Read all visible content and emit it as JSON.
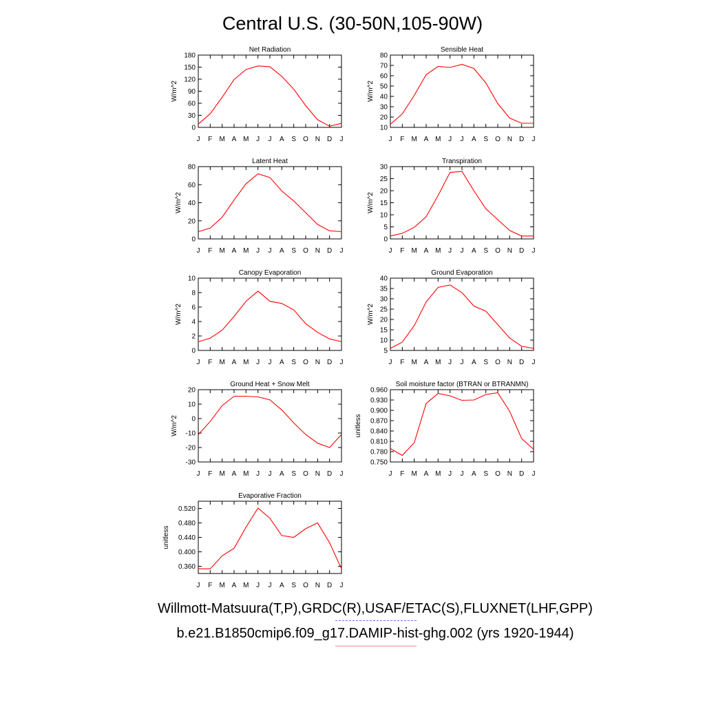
{
  "title": "Central U.S. (30-50N,105-90W)",
  "captions": {
    "line1": "Willmott-Matsuura(T,P),GRDC(R),USAF/ETAC(S),FLUXNET(LHF,GPP)",
    "line2": "b.e21.B1850cmip6.f09_g17.DAMIP-hist-ghg.002 (yrs 1920-1944)"
  },
  "colors": {
    "line": "#ff0000",
    "obs_legend": "#6a6af0",
    "model_legend": "#f08a8a"
  },
  "chart_data": [
    {
      "type": "line",
      "title": "Net Radiation",
      "ylabel": "W/m^2",
      "categories": [
        "J",
        "F",
        "M",
        "A",
        "M",
        "J",
        "J",
        "A",
        "S",
        "O",
        "N",
        "D",
        "J"
      ],
      "ylim": [
        0,
        180
      ],
      "yticks": [
        "0",
        "30",
        "60",
        "90",
        "120",
        "150",
        "180"
      ],
      "values": [
        8,
        34,
        75,
        119,
        144,
        153,
        151,
        127,
        95,
        54,
        19,
        3,
        10
      ]
    },
    {
      "type": "line",
      "title": "Sensible Heat",
      "ylabel": "W/m^2",
      "categories": [
        "J",
        "F",
        "M",
        "A",
        "M",
        "J",
        "J",
        "A",
        "S",
        "O",
        "N",
        "D",
        "J"
      ],
      "ylim": [
        10,
        80
      ],
      "yticks": [
        "10",
        "20",
        "30",
        "40",
        "50",
        "60",
        "70",
        "80"
      ],
      "values": [
        13,
        23,
        41,
        61,
        69,
        68,
        71,
        67,
        53,
        33,
        19,
        14,
        14
      ]
    },
    {
      "type": "line",
      "title": "Latent Heat",
      "ylabel": "W/m^2",
      "categories": [
        "J",
        "F",
        "M",
        "A",
        "M",
        "J",
        "J",
        "A",
        "S",
        "O",
        "N",
        "D",
        "J"
      ],
      "ylim": [
        0,
        80
      ],
      "yticks": [
        "0",
        "20",
        "40",
        "60",
        "80"
      ],
      "values": [
        8,
        12,
        24,
        43,
        61,
        72,
        68,
        53,
        42,
        29,
        16,
        9,
        8
      ]
    },
    {
      "type": "line",
      "title": "Transpiration",
      "ylabel": "W/m^2",
      "categories": [
        "J",
        "F",
        "M",
        "A",
        "M",
        "J",
        "J",
        "A",
        "S",
        "O",
        "N",
        "D",
        "J"
      ],
      "ylim": [
        0,
        30
      ],
      "yticks": [
        "0",
        "5",
        "10",
        "15",
        "20",
        "25",
        "30"
      ],
      "values": [
        1.2,
        2.3,
        4.8,
        9.2,
        18,
        27.6,
        28,
        20,
        12.5,
        8,
        3.5,
        1.2,
        1.2
      ]
    },
    {
      "type": "line",
      "title": "Canopy Evaporation",
      "ylabel": "W/m^2",
      "categories": [
        "J",
        "F",
        "M",
        "A",
        "M",
        "J",
        "J",
        "A",
        "S",
        "O",
        "N",
        "D",
        "J"
      ],
      "ylim": [
        0,
        10
      ],
      "yticks": [
        "0",
        "2",
        "4",
        "6",
        "8",
        "10"
      ],
      "values": [
        1.2,
        1.7,
        2.8,
        4.7,
        6.8,
        8.2,
        6.8,
        6.5,
        5.6,
        3.7,
        2.5,
        1.6,
        1.2
      ]
    },
    {
      "type": "line",
      "title": "Ground Evaporation",
      "ylabel": "W/m^2",
      "categories": [
        "J",
        "F",
        "M",
        "A",
        "M",
        "J",
        "J",
        "A",
        "S",
        "O",
        "N",
        "D",
        "J"
      ],
      "ylim": [
        5,
        40
      ],
      "yticks": [
        "5",
        "10",
        "15",
        "20",
        "25",
        "30",
        "35",
        "40"
      ],
      "values": [
        6,
        9,
        17,
        28.5,
        35.5,
        36.7,
        33,
        26.5,
        24,
        17.5,
        11,
        7,
        6
      ]
    },
    {
      "type": "line",
      "title": "Ground Heat + Snow Melt",
      "ylabel": "W/m^2",
      "categories": [
        "J",
        "F",
        "M",
        "A",
        "M",
        "J",
        "J",
        "A",
        "S",
        "O",
        "N",
        "D",
        "J"
      ],
      "ylim": [
        -30,
        20
      ],
      "yticks": [
        "-30",
        "-20",
        "-10",
        "0",
        "10",
        "20"
      ],
      "values": [
        -11,
        -2,
        9,
        15.5,
        15.5,
        15,
        13,
        6,
        -3,
        -11,
        -17,
        -20,
        -11
      ]
    },
    {
      "type": "line",
      "title": "Soil moisture factor (BTRAN or BTRANMN)",
      "ylabel": "unitless",
      "categories": [
        "J",
        "F",
        "M",
        "A",
        "M",
        "J",
        "J",
        "A",
        "S",
        "O",
        "N",
        "D",
        "J"
      ],
      "ylim": [
        0.75,
        0.96
      ],
      "yticks": [
        "0.750",
        "0.780",
        "0.810",
        "0.840",
        "0.870",
        "0.900",
        "0.930",
        "0.960"
      ],
      "values": [
        0.789,
        0.769,
        0.806,
        0.92,
        0.949,
        0.942,
        0.929,
        0.93,
        0.946,
        0.951,
        0.897,
        0.818,
        0.787
      ]
    },
    {
      "type": "line",
      "title": "Evaporative Fraction",
      "ylabel": "unitless",
      "categories": [
        "J",
        "F",
        "M",
        "A",
        "M",
        "J",
        "J",
        "A",
        "S",
        "O",
        "N",
        "D",
        "J"
      ],
      "ylim": [
        0.34,
        0.54
      ],
      "yticks": [
        "0.360",
        "0.400",
        "0.440",
        "0.480",
        "0.520"
      ],
      "ytick_values": [
        0.36,
        0.4,
        0.44,
        0.48,
        0.52
      ],
      "values": [
        0.353,
        0.353,
        0.389,
        0.41,
        0.468,
        0.521,
        0.493,
        0.445,
        0.44,
        0.464,
        0.48,
        0.425,
        0.353
      ]
    }
  ]
}
